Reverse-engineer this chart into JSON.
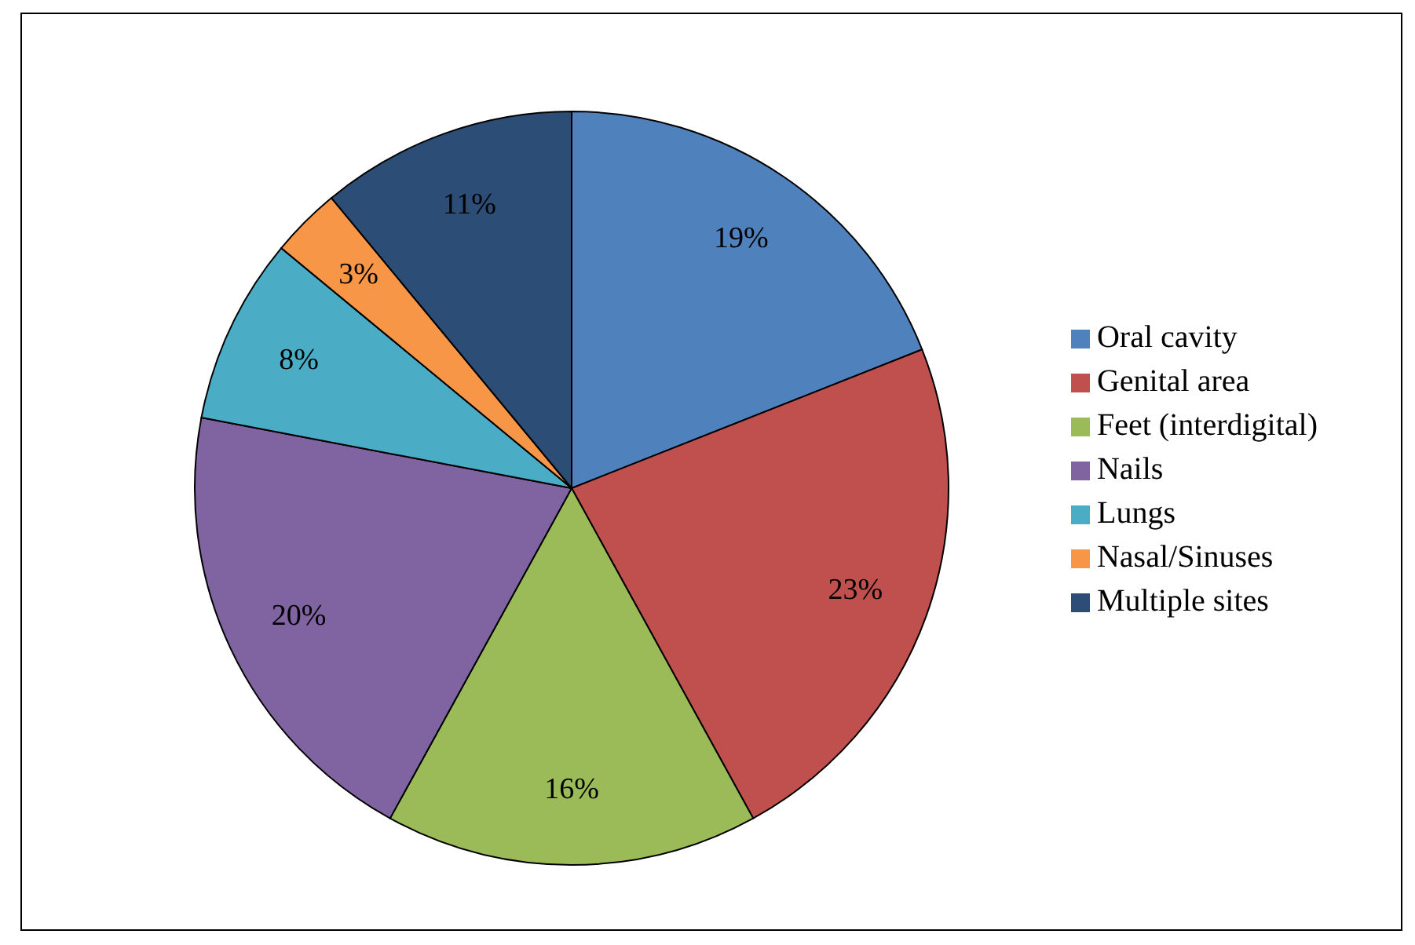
{
  "chart_data": {
    "type": "pie",
    "categories": [
      "Oral cavity",
      "Genital area",
      "Feet (interdigital)",
      "Nails",
      "Lungs",
      "Nasal/Sinuses",
      "Multiple sites"
    ],
    "values": [
      19,
      23,
      16,
      20,
      8,
      3,
      11
    ],
    "value_labels": [
      "19%",
      "23%",
      "16%",
      "20%",
      "8%",
      "3%",
      "11%"
    ],
    "colors": [
      "#4f81bd",
      "#c0504d",
      "#9bbb59",
      "#8064a2",
      "#4bacc6",
      "#f79646",
      "#2c4d75"
    ],
    "legend": "right"
  }
}
